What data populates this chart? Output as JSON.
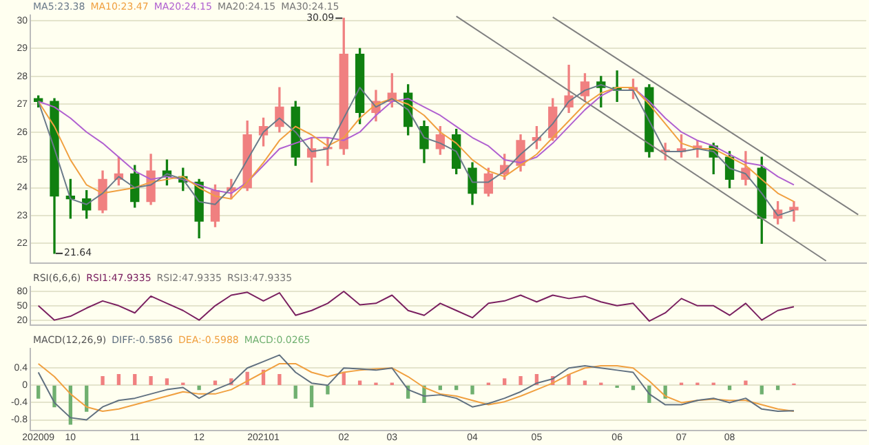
{
  "chart_data": [
    {
      "type": "candlestick",
      "categories": [
        "202009",
        null,
        "10",
        null,
        null,
        null,
        "11",
        null,
        null,
        null,
        "12",
        null,
        null,
        null,
        "202101",
        null,
        null,
        null,
        null,
        "02",
        null,
        null,
        "03",
        null,
        null,
        null,
        null,
        "04",
        null,
        null,
        null,
        "05",
        null,
        null,
        null,
        null,
        "06",
        null,
        null,
        null,
        "07",
        null,
        null,
        "08",
        null,
        null,
        null,
        null,
        null,
        null,
        null,
        null
      ],
      "ohlc": [
        [
          27.2,
          27.3,
          26.9,
          27.1
        ],
        [
          27.1,
          27.2,
          21.64,
          23.7
        ],
        [
          23.7,
          24.3,
          22.9,
          23.6
        ],
        [
          23.6,
          23.9,
          22.9,
          23.2
        ],
        [
          23.2,
          24.6,
          23.1,
          24.3
        ],
        [
          24.3,
          25.1,
          24.1,
          24.5
        ],
        [
          24.5,
          24.8,
          23.3,
          23.5
        ],
        [
          23.5,
          25.2,
          23.4,
          24.6
        ],
        [
          24.6,
          25.0,
          24.1,
          24.4
        ],
        [
          24.4,
          24.7,
          23.9,
          24.2
        ],
        [
          24.2,
          24.3,
          22.2,
          22.8
        ],
        [
          22.8,
          24.1,
          22.6,
          23.9
        ],
        [
          23.9,
          24.3,
          23.6,
          24.0
        ],
        [
          24.0,
          26.4,
          23.9,
          25.9
        ],
        [
          25.9,
          26.5,
          25.5,
          26.2
        ],
        [
          26.2,
          27.6,
          26.0,
          26.9
        ],
        [
          26.9,
          27.1,
          24.8,
          25.1
        ],
        [
          25.1,
          25.8,
          24.2,
          25.4
        ],
        [
          25.4,
          25.8,
          24.8,
          25.4
        ],
        [
          25.4,
          30.09,
          25.2,
          28.8
        ],
        [
          28.8,
          29.0,
          26.3,
          26.7
        ],
        [
          26.7,
          27.5,
          26.4,
          27.1
        ],
        [
          27.1,
          28.1,
          26.9,
          27.4
        ],
        [
          27.4,
          27.7,
          25.9,
          26.2
        ],
        [
          26.2,
          26.4,
          24.9,
          25.4
        ],
        [
          25.4,
          26.2,
          25.2,
          25.9
        ],
        [
          25.9,
          26.1,
          24.5,
          24.7
        ],
        [
          24.7,
          24.9,
          23.4,
          23.8
        ],
        [
          23.8,
          24.7,
          23.7,
          24.5
        ],
        [
          24.5,
          25.2,
          24.3,
          24.8
        ],
        [
          24.8,
          25.9,
          24.6,
          25.7
        ],
        [
          25.7,
          26.2,
          25.4,
          25.8
        ],
        [
          25.8,
          27.2,
          25.7,
          26.9
        ],
        [
          26.9,
          28.4,
          26.7,
          27.3
        ],
        [
          27.3,
          28.1,
          27.1,
          27.8
        ],
        [
          27.8,
          28.0,
          26.9,
          27.6
        ],
        [
          27.6,
          28.2,
          27.1,
          27.5
        ],
        [
          27.5,
          27.9,
          27.2,
          27.6
        ],
        [
          27.6,
          27.7,
          25.1,
          25.3
        ],
        [
          25.3,
          25.6,
          25.0,
          25.3
        ],
        [
          25.3,
          25.9,
          25.1,
          25.4
        ],
        [
          25.4,
          25.7,
          25.1,
          25.5
        ],
        [
          25.5,
          25.6,
          24.5,
          25.1
        ],
        [
          25.1,
          25.3,
          24.0,
          24.3
        ],
        [
          24.3,
          25.3,
          24.1,
          24.7
        ],
        [
          24.7,
          25.1,
          22.0,
          22.9
        ],
        [
          22.9,
          23.5,
          22.7,
          23.2
        ],
        [
          23.2,
          23.5,
          22.8,
          23.3
        ],
        null,
        null,
        null,
        null
      ],
      "series": [
        {
          "type": "line",
          "name": "MA5:23.38",
          "color": "#6a7a8a",
          "values": [
            27.1,
            25.4,
            23.6,
            23.4,
            23.8,
            24.4,
            24.0,
            24.1,
            24.5,
            24.3,
            23.5,
            23.4,
            24.0,
            25.0,
            26.0,
            26.5,
            26.0,
            25.3,
            25.4,
            26.5,
            27.6,
            26.9,
            27.2,
            26.8,
            25.8,
            25.6,
            25.3,
            24.2,
            24.2,
            24.6,
            25.2,
            25.7,
            26.3,
            27.1,
            27.5,
            27.7,
            27.5,
            27.5,
            26.4,
            25.3,
            25.3,
            25.4,
            25.3,
            24.7,
            24.5,
            23.8,
            23.0,
            23.2,
            null,
            null,
            null,
            null
          ]
        },
        {
          "type": "line",
          "name": "MA10:23.47",
          "color": "#f0a040",
          "values": [
            27.1,
            26.2,
            25.0,
            24.1,
            23.8,
            23.9,
            24.0,
            24.2,
            24.3,
            24.4,
            24.0,
            23.7,
            23.6,
            24.2,
            24.9,
            25.7,
            26.2,
            25.9,
            25.5,
            25.8,
            26.5,
            27.0,
            27.2,
            27.0,
            26.6,
            26.0,
            25.6,
            25.0,
            24.6,
            24.4,
            24.8,
            25.2,
            25.8,
            26.4,
            27.0,
            27.4,
            27.6,
            27.6,
            27.0,
            26.3,
            25.6,
            25.4,
            25.4,
            25.1,
            24.8,
            24.3,
            23.8,
            23.5,
            null,
            null,
            null,
            null
          ]
        },
        {
          "type": "line",
          "name": "MA20:24.15",
          "color": "#b060d0",
          "values": [
            27.1,
            26.9,
            26.5,
            26.0,
            25.6,
            25.1,
            24.6,
            24.3,
            24.4,
            24.3,
            24.1,
            23.9,
            23.8,
            24.2,
            24.8,
            25.4,
            25.6,
            25.8,
            25.8,
            25.7,
            26.0,
            26.6,
            27.1,
            27.2,
            26.9,
            26.6,
            26.2,
            25.8,
            25.5,
            25.0,
            24.9,
            25.1,
            25.6,
            26.2,
            26.8,
            27.3,
            27.6,
            27.6,
            27.1,
            26.5,
            26.0,
            25.7,
            25.5,
            25.2,
            24.9,
            24.8,
            24.4,
            24.1,
            null,
            null,
            null,
            null
          ]
        },
        {
          "type": "line",
          "color": "#808080",
          "values": [
            null,
            null,
            null,
            null,
            null,
            null,
            null,
            null,
            null,
            null,
            null,
            null,
            null,
            null,
            null,
            null,
            null,
            null,
            null,
            null,
            null,
            null,
            null,
            null,
            null,
            null,
            null,
            null,
            null,
            null,
            null,
            null,
            30.13,
            null,
            null,
            null,
            null,
            null,
            null,
            null,
            null,
            null,
            null,
            null,
            null,
            null,
            null,
            null,
            null,
            null,
            null,
            23.03
          ]
        },
        {
          "type": "line",
          "color": "#808080",
          "values": [
            null,
            null,
            null,
            null,
            null,
            null,
            null,
            null,
            null,
            null,
            null,
            null,
            null,
            null,
            null,
            null,
            null,
            null,
            null,
            null,
            null,
            null,
            null,
            null,
            null,
            null,
            30.16,
            null,
            null,
            null,
            null,
            null,
            null,
            null,
            null,
            null,
            null,
            null,
            null,
            null,
            null,
            null,
            null,
            null,
            null,
            null,
            null,
            null,
            null,
            21.37,
            null,
            null
          ]
        }
      ],
      "annotations": [
        "30.09",
        "21.64",
        "MA20:24.15",
        "MA30:24.15"
      ],
      "ylim": [
        21.3,
        30.2
      ],
      "yticks": [
        22,
        23,
        24,
        25,
        26,
        27,
        28,
        29,
        30
      ],
      "grid": "y",
      "tick_labels": "y",
      "legend": "top left"
    },
    {
      "type": "line",
      "categories": [
        "202009",
        null,
        "10",
        null,
        null,
        null,
        "11",
        null,
        null,
        null,
        "12",
        null,
        null,
        null,
        "202101",
        null,
        null,
        null,
        null,
        "02",
        null,
        null,
        "03",
        null,
        null,
        null,
        null,
        "04",
        null,
        null,
        null,
        "05",
        null,
        null,
        null,
        null,
        "06",
        null,
        null,
        null,
        "07",
        null,
        null,
        "08",
        null,
        null,
        null,
        null,
        null,
        null,
        null,
        null
      ],
      "series": [
        {
          "name": "RSI1:47.9335",
          "color": "#7a2060",
          "values": [
            50,
            20,
            28,
            45,
            60,
            50,
            35,
            70,
            55,
            40,
            20,
            50,
            72,
            78,
            60,
            77,
            30,
            40,
            55,
            80,
            52,
            55,
            72,
            40,
            30,
            55,
            40,
            25,
            55,
            60,
            72,
            58,
            72,
            65,
            70,
            58,
            50,
            55,
            18,
            35,
            65,
            50,
            50,
            30,
            55,
            20,
            40,
            48,
            null,
            null,
            null,
            null
          ]
        }
      ],
      "annotations": [
        "RSI(6,6,6)",
        "RSI2:47.9335",
        "RSI3:47.9335"
      ],
      "ylim": [
        10,
        90
      ],
      "yticks": [
        20,
        50,
        80
      ],
      "grid": "y",
      "tick_labels": "y",
      "legend": "top left"
    },
    {
      "type": "bar",
      "categories": [
        "202009",
        null,
        "10",
        null,
        null,
        null,
        "11",
        null,
        null,
        null,
        "12",
        null,
        null,
        null,
        "202101",
        null,
        null,
        null,
        null,
        "02",
        null,
        null,
        "03",
        null,
        null,
        null,
        null,
        "04",
        null,
        null,
        null,
        "05",
        null,
        null,
        null,
        null,
        "06",
        null,
        null,
        null,
        "07",
        null,
        null,
        "08",
        null,
        null,
        null,
        null,
        null,
        null,
        null,
        null
      ],
      "series": [
        {
          "type": "line",
          "name": "DIFF:-0.5856",
          "color": "#607080",
          "values": [
            0.3,
            -0.4,
            -0.75,
            -0.8,
            -0.5,
            -0.35,
            -0.3,
            -0.2,
            -0.1,
            -0.05,
            -0.3,
            -0.1,
            0.05,
            0.4,
            0.55,
            0.7,
            0.3,
            0.05,
            0.0,
            0.4,
            0.38,
            0.35,
            0.4,
            -0.1,
            -0.25,
            -0.22,
            -0.3,
            -0.5,
            -0.42,
            -0.3,
            -0.15,
            0.05,
            0.15,
            0.4,
            0.45,
            0.4,
            0.35,
            0.3,
            -0.2,
            -0.45,
            -0.45,
            -0.35,
            -0.3,
            -0.4,
            -0.3,
            -0.55,
            -0.6,
            -0.59,
            null,
            null,
            null,
            null
          ]
        },
        {
          "type": "line",
          "name": "DEA:-0.5988",
          "color": "#f0a040",
          "values": [
            0.5,
            0.2,
            -0.2,
            -0.5,
            -0.6,
            -0.55,
            -0.45,
            -0.35,
            -0.25,
            -0.15,
            -0.2,
            -0.2,
            -0.1,
            0.1,
            0.3,
            0.5,
            0.5,
            0.3,
            0.2,
            0.3,
            0.35,
            0.38,
            0.4,
            0.2,
            -0.05,
            -0.2,
            -0.25,
            -0.35,
            -0.45,
            -0.38,
            -0.25,
            -0.1,
            0.05,
            0.25,
            0.4,
            0.45,
            0.45,
            0.4,
            0.1,
            -0.25,
            -0.4,
            -0.35,
            -0.32,
            -0.35,
            -0.35,
            -0.45,
            -0.55,
            -0.6,
            null,
            null,
            null,
            null
          ]
        },
        {
          "type": "bar",
          "name": "MACD:0.0265",
          "values": [
            -0.3,
            -0.5,
            -0.9,
            -0.6,
            0.2,
            0.25,
            0.25,
            0.2,
            0.15,
            0.05,
            -0.1,
            0.1,
            0.15,
            0.3,
            0.35,
            0.25,
            -0.3,
            -0.5,
            -0.2,
            0.3,
            0.1,
            0.05,
            0.05,
            -0.3,
            -0.4,
            -0.1,
            -0.1,
            -0.2,
            0.05,
            0.15,
            0.2,
            0.25,
            0.2,
            0.25,
            0.1,
            0.05,
            -0.05,
            -0.1,
            -0.4,
            -0.3,
            0.05,
            0.05,
            0.05,
            -0.1,
            0.1,
            -0.2,
            -0.1,
            0.03,
            null,
            null,
            null,
            null
          ],
          "colors": [
            "#70b070",
            "#70b070",
            "#70b070",
            "#70b070",
            "#f08080",
            "#f08080",
            "#f08080",
            "#f08080",
            "#f08080",
            "#f08080",
            "#70b070",
            "#f08080",
            "#f08080",
            "#f08080",
            "#f08080",
            "#f08080",
            "#70b070",
            "#70b070",
            "#70b070",
            "#f08080",
            "#f08080",
            "#f08080",
            "#f08080",
            "#70b070",
            "#70b070",
            "#70b070",
            "#70b070",
            "#70b070",
            "#f08080",
            "#f08080",
            "#f08080",
            "#f08080",
            "#f08080",
            "#f08080",
            "#f08080",
            "#f08080",
            "#70b070",
            "#70b070",
            "#70b070",
            "#70b070",
            "#f08080",
            "#f08080",
            "#f08080",
            "#70b070",
            "#f08080",
            "#70b070",
            "#70b070",
            "#f08080",
            "#70b070",
            "#70b070",
            "#70b070",
            "#70b070"
          ]
        }
      ],
      "annotations": [
        "MACD(12,26,9)"
      ],
      "ylim": [
        -1.05,
        0.85
      ],
      "yticks": [
        -0.8,
        -0.4,
        0,
        0.4
      ],
      "grid": "y",
      "legend": "top left"
    }
  ]
}
